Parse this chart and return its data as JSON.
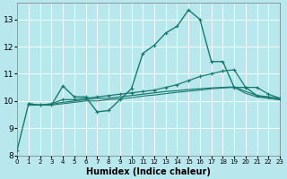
{
  "xlabel": "Humidex (Indice chaleur)",
  "background_color": "#b8e8ee",
  "grid_color": "#d0f0f0",
  "line_color": "#1a7a6e",
  "xlim": [
    0,
    23
  ],
  "ylim": [
    8,
    13.6
  ],
  "yticks": [
    8,
    9,
    10,
    11,
    12,
    13
  ],
  "xticks": [
    0,
    1,
    2,
    3,
    4,
    5,
    6,
    7,
    8,
    9,
    10,
    11,
    12,
    13,
    14,
    15,
    16,
    17,
    18,
    19,
    20,
    21,
    22,
    23
  ],
  "series": [
    {
      "x": [
        0,
        1,
        2,
        3,
        4,
        5,
        6,
        7,
        8,
        9,
        10,
        11,
        12,
        13,
        14,
        15,
        16,
        17,
        18,
        19,
        20,
        21,
        22,
        23
      ],
      "y": [
        8.2,
        9.9,
        9.85,
        9.85,
        10.55,
        10.15,
        10.15,
        9.6,
        9.65,
        10.05,
        10.45,
        11.75,
        12.05,
        12.5,
        12.75,
        13.35,
        13.0,
        11.45,
        11.45,
        10.5,
        10.5,
        10.2,
        10.15,
        10.1
      ],
      "marker": true,
      "linewidth": 1.0,
      "linestyle": "-"
    },
    {
      "x": [
        1,
        2,
        3,
        4,
        5,
        6,
        7,
        8,
        9,
        10,
        11,
        12,
        13,
        14,
        15,
        16,
        17,
        18,
        19,
        20,
        21,
        22,
        23
      ],
      "y": [
        9.9,
        9.85,
        9.9,
        10.05,
        10.05,
        10.1,
        10.15,
        10.2,
        10.25,
        10.3,
        10.35,
        10.4,
        10.5,
        10.6,
        10.75,
        10.9,
        11.0,
        11.1,
        11.15,
        10.5,
        10.5,
        10.25,
        10.1
      ],
      "marker": true,
      "linewidth": 0.9,
      "linestyle": "-"
    },
    {
      "x": [
        1,
        2,
        3,
        4,
        5,
        6,
        7,
        8,
        9,
        10,
        11,
        12,
        13,
        14,
        15,
        16,
        17,
        18,
        19,
        20,
        21,
        22,
        23
      ],
      "y": [
        9.85,
        9.85,
        9.88,
        9.95,
        10.0,
        10.05,
        10.1,
        10.1,
        10.15,
        10.2,
        10.25,
        10.3,
        10.35,
        10.38,
        10.42,
        10.45,
        10.48,
        10.5,
        10.52,
        10.35,
        10.2,
        10.1,
        10.05
      ],
      "marker": false,
      "linewidth": 0.9,
      "linestyle": "-"
    },
    {
      "x": [
        1,
        2,
        3,
        4,
        5,
        6,
        7,
        8,
        9,
        10,
        11,
        12,
        13,
        14,
        15,
        16,
        17,
        18,
        19,
        20,
        21,
        22,
        23
      ],
      "y": [
        9.85,
        9.85,
        9.85,
        9.9,
        9.95,
        10.0,
        10.0,
        10.05,
        10.08,
        10.12,
        10.18,
        10.22,
        10.27,
        10.32,
        10.36,
        10.4,
        10.45,
        10.48,
        10.5,
        10.28,
        10.15,
        10.1,
        10.05
      ],
      "marker": false,
      "linewidth": 0.8,
      "linestyle": "-"
    }
  ]
}
